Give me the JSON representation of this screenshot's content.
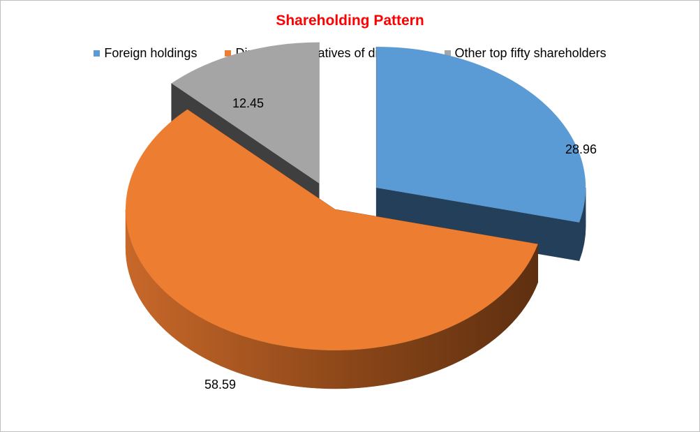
{
  "chart_data": {
    "type": "pie",
    "variant": "exploded-3d",
    "title": "Shareholding Pattern",
    "title_color": "#ff0000",
    "categories": [
      "Foreign holdings",
      "Directors or relatives of directors",
      "Other top fifty shareholders"
    ],
    "values": [
      28.96,
      58.59,
      12.45
    ],
    "value_labels": [
      "28.96",
      "58.59",
      "12.45"
    ],
    "colors": [
      "#5b9bd5",
      "#ed7d31",
      "#a5a5a5"
    ],
    "side_colors": [
      "#243f5a",
      "#7a3d12",
      "#3f3f3f"
    ],
    "legend_position": "top"
  }
}
